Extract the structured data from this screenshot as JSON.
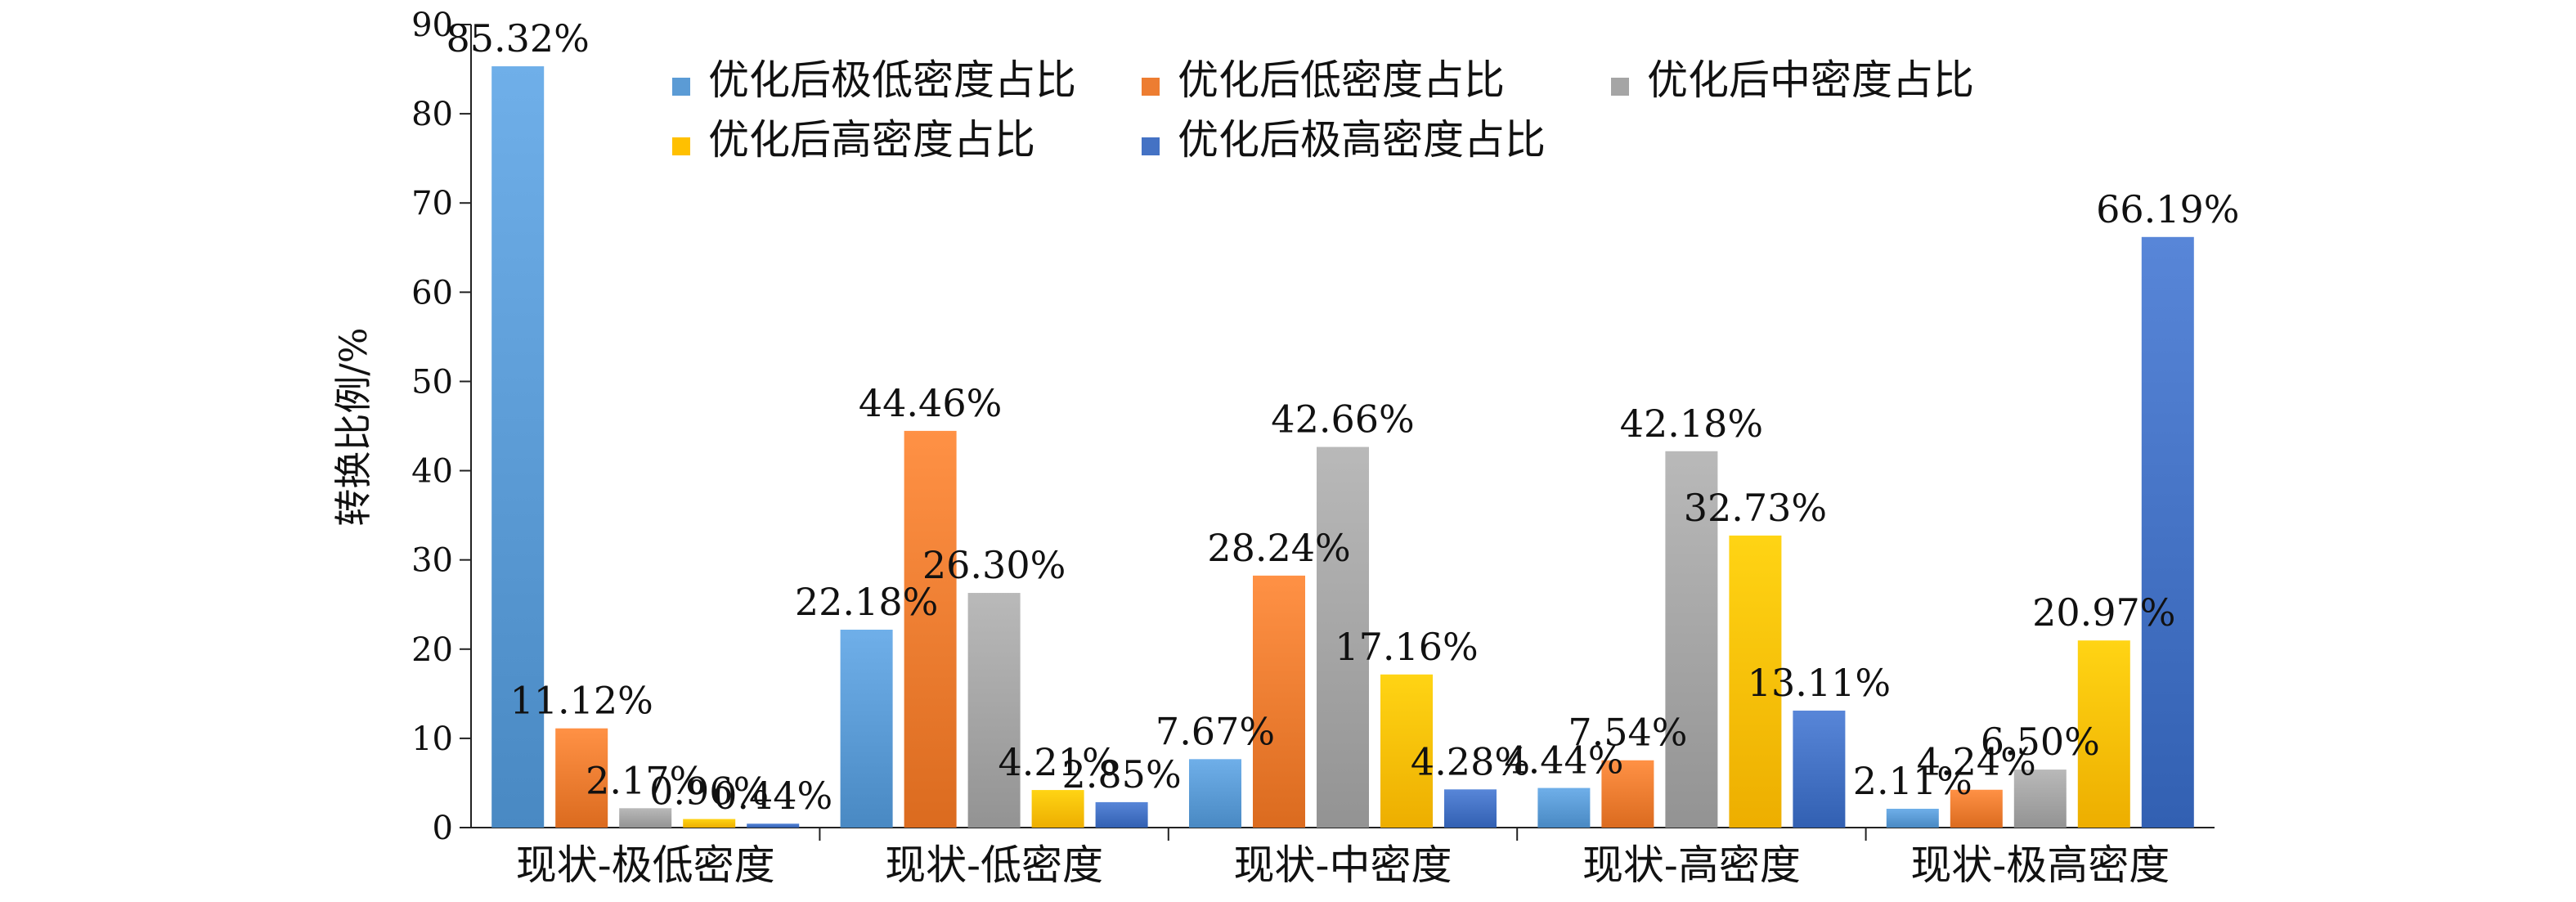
{
  "chart_data": {
    "type": "bar",
    "title": "",
    "xlabel": "",
    "ylabel": "转换比例/%",
    "ylim": [
      0,
      90
    ],
    "yticks": [
      0,
      10,
      20,
      30,
      40,
      50,
      60,
      70,
      80,
      90
    ],
    "grid": false,
    "legend_position": "top",
    "categories": [
      "现状-极低密度",
      "现状-低密度",
      "现状-中密度",
      "现状-高密度",
      "现状-极高密度"
    ],
    "series": [
      {
        "name": "优化后极低密度占比",
        "color": "#5B9BD5",
        "values": [
          85.32,
          22.18,
          7.67,
          4.44,
          2.11
        ],
        "labels": [
          "85.32%",
          "22.18%",
          "7.67%",
          "4.44%",
          "2.11%"
        ]
      },
      {
        "name": "优化后低密度占比",
        "color": "#ED7D31",
        "values": [
          11.12,
          44.46,
          28.24,
          7.54,
          4.24
        ],
        "labels": [
          "11.12%",
          "44.46%",
          "28.24%",
          "7.54%",
          "4.24%"
        ]
      },
      {
        "name": "优化后中密度占比",
        "color": "#A5A5A5",
        "values": [
          2.17,
          26.3,
          42.66,
          42.18,
          6.5
        ],
        "labels": [
          "2.17%",
          "26.30%",
          "42.66%",
          "42.18%",
          "6.50%"
        ]
      },
      {
        "name": "优化后高密度占比",
        "color": "#FFC000",
        "values": [
          0.96,
          4.21,
          17.16,
          32.73,
          20.97
        ],
        "labels": [
          "0.96%",
          "4.21%",
          "17.16%",
          "32.73%",
          "20.97%"
        ]
      },
      {
        "name": "优化后极高密度占比",
        "color": "#4472C4",
        "values": [
          0.44,
          2.85,
          4.28,
          13.11,
          66.19
        ],
        "labels": [
          "0.44%",
          "2.85%",
          "4.28%",
          "13.11%",
          "66.19%"
        ]
      }
    ]
  }
}
